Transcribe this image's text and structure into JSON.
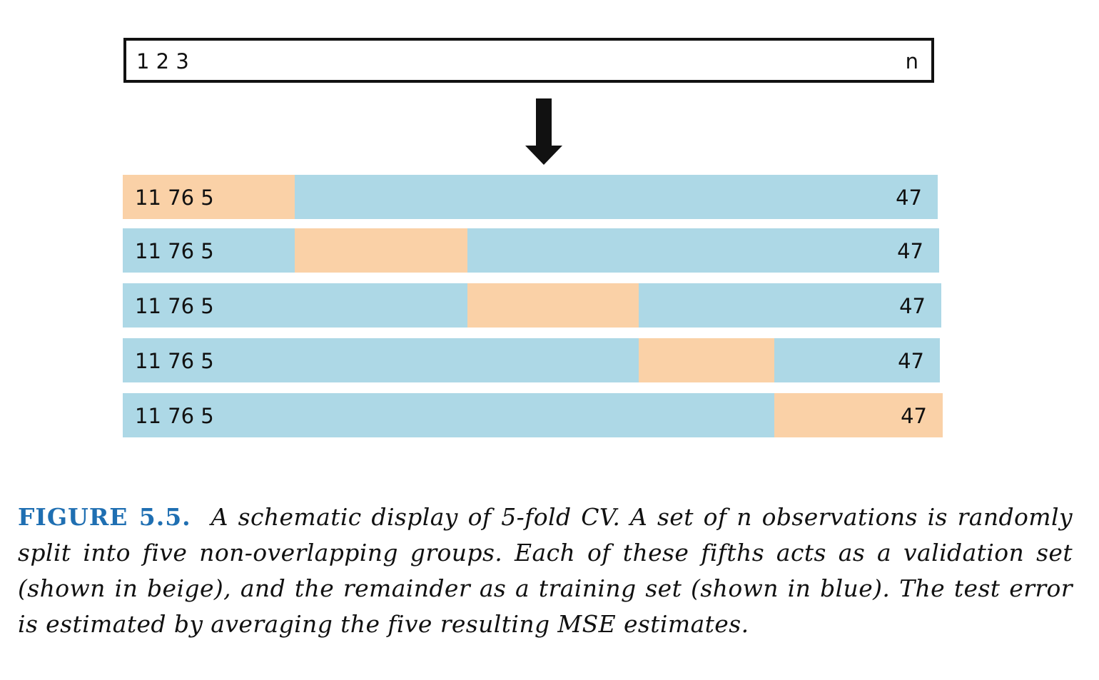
{
  "observations_box": {
    "left_label": "1 2 3",
    "right_label": "n"
  },
  "colors": {
    "training": "#add8e6",
    "validation": "#fad1a7",
    "caption_label": "#1f6fb2",
    "arrow": "#111111"
  },
  "folds": [
    {
      "left_label": "11 76 5",
      "right_label": "47",
      "validation_fold": 1
    },
    {
      "left_label": "11 76 5",
      "right_label": "47",
      "validation_fold": 2
    },
    {
      "left_label": "11 76 5",
      "right_label": "47",
      "validation_fold": 3
    },
    {
      "left_label": "11 76 5",
      "right_label": "47",
      "validation_fold": 4
    },
    {
      "left_label": "11 76 5",
      "right_label": "47",
      "validation_fold": 5
    }
  ],
  "caption": {
    "label": "FIGURE 5.5.",
    "text": "A schematic display of 5-fold CV. A set of n observations is randomly split into five non-overlapping groups. Each of these fifths acts as a validation set (shown in beige), and the remainder as a training set (shown in blue). The test error is estimated by averaging the five resulting MSE estimates."
  }
}
